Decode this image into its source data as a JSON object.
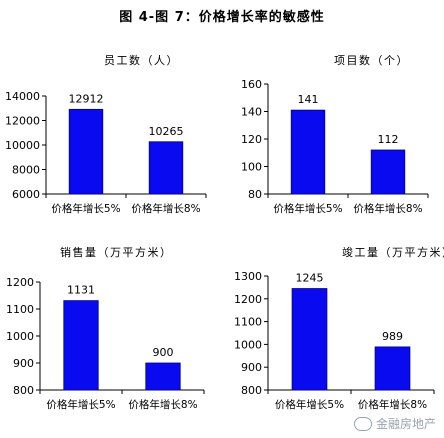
{
  "figure_title": "图 4-图 7：价格增长率的敏感性",
  "watermark": "金融房地产",
  "colors": {
    "bar": "#0A0AF0",
    "bar_stroke": "#000080",
    "axis": "#000000",
    "text": "#000000"
  },
  "chart_data": [
    {
      "type": "bar",
      "title": "员工数（人）",
      "categories": [
        "价格年增长5%",
        "价格年增长8%"
      ],
      "values": [
        12912,
        10265
      ],
      "ylim": [
        6000,
        14000
      ],
      "yticks": [
        6000,
        8000,
        10000,
        12000,
        14000
      ],
      "xlabel": "",
      "ylabel": "",
      "grid": false,
      "legend": "none"
    },
    {
      "type": "bar",
      "title": "项目数（个）",
      "categories": [
        "价格年增长5%",
        "价格年增长8%"
      ],
      "values": [
        141,
        112
      ],
      "ylim": [
        80,
        160
      ],
      "yticks": [
        80,
        100,
        120,
        140,
        160
      ],
      "xlabel": "",
      "ylabel": "",
      "grid": false,
      "legend": "none"
    },
    {
      "type": "bar",
      "title": "销售量（万平方米）",
      "categories": [
        "价格年增长5%",
        "价格年增长8%"
      ],
      "values": [
        1131,
        900
      ],
      "ylim": [
        800,
        1200
      ],
      "yticks": [
        800,
        900,
        1000,
        1100,
        1200
      ],
      "xlabel": "",
      "ylabel": "",
      "grid": false,
      "legend": "none"
    },
    {
      "type": "bar",
      "title": "竣工量（万平方米）",
      "categories": [
        "价格年增长5%",
        "价格年增长8%"
      ],
      "values": [
        1245,
        989
      ],
      "ylim": [
        800,
        1300
      ],
      "yticks": [
        800,
        900,
        1000,
        1100,
        1200,
        1300
      ],
      "xlabel": "",
      "ylabel": "",
      "grid": false,
      "legend": "none"
    }
  ]
}
